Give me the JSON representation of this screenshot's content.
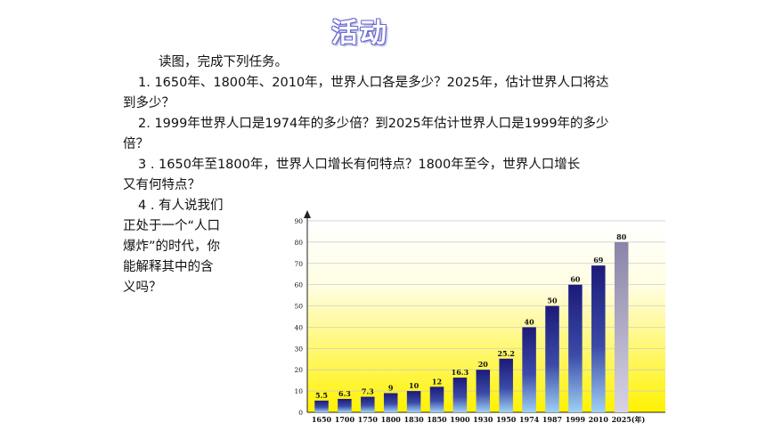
{
  "title": "活动",
  "intro": "读图，完成下列任务。",
  "q1_line1": "1. 1650年、1800年、2010年，世界人口各是多少？2025年，估计世界人口将达",
  "q1_line2": "到多少？",
  "q2_line1": "2. 1999年世界人口是1974年的多少倍？到2025年估计世界人口是1999年的多少",
  "q2_line2": "倍？",
  "q3_line1": "3 . 1650年至1800年，世界人口增长有何特点？1800年至今，世界人口增长",
  "q3_line2": "又有何特点？",
  "q4_lines": [
    "4 . 有人说我们",
    "正处于一个“人口",
    "爆炸”的时代，你",
    "能解释其中的含",
    "义吗？"
  ],
  "chart_data": {
    "type": "bar",
    "categories": [
      "1650",
      "1700",
      "1750",
      "1800",
      "1830",
      "1850",
      "1900",
      "1930",
      "1950",
      "1974",
      "1987",
      "1999",
      "2010",
      "2025"
    ],
    "values": [
      5.5,
      6.3,
      7.3,
      9,
      10,
      12,
      16.3,
      20,
      25.2,
      40,
      50,
      60,
      69,
      80
    ],
    "value_labels": [
      "5.5",
      "6.3",
      "7.3",
      "9",
      "10",
      "12",
      "16.3",
      "20",
      "25.2",
      "40",
      "50",
      "60",
      "69",
      "80"
    ],
    "x_unit_label": "(年)",
    "ylim": [
      0,
      90
    ],
    "yticks": [
      0,
      10,
      20,
      30,
      40,
      50,
      60,
      70,
      80,
      90
    ],
    "grid": true,
    "colors": {
      "bar_top": "#1c1a78",
      "bar_bottom": "#9fd0f4",
      "last_bar_top": "#8a84a8",
      "last_bar_bottom": "#d6d3e4",
      "bg_top": "#ffffff",
      "bg_bottom": "#fff200"
    }
  }
}
